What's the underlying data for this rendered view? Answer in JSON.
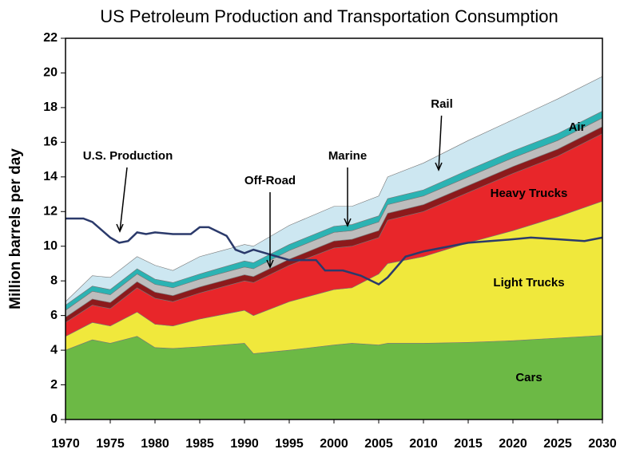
{
  "chart_data": {
    "type": "stacked_area",
    "title": "US Petroleum Production and Transportation Consumption",
    "y_label": "Million barrels per day",
    "xlim": [
      1970,
      2030
    ],
    "ylim": [
      0,
      22
    ],
    "xticks": [
      1970,
      1975,
      1980,
      1985,
      1990,
      1995,
      2000,
      2005,
      2010,
      2015,
      2020,
      2025,
      2030
    ],
    "yticks": [
      0,
      2,
      4,
      6,
      8,
      10,
      12,
      14,
      16,
      18,
      20,
      22
    ],
    "x": [
      1970,
      1973,
      1975,
      1978,
      1980,
      1982,
      1985,
      1990,
      1991,
      1995,
      2000,
      2002,
      2005,
      2006,
      2010,
      2015,
      2020,
      2025,
      2030
    ],
    "series": [
      {
        "name": "Cars",
        "color": "#6cb945",
        "values": [
          4.0,
          4.6,
          4.4,
          4.8,
          4.15,
          4.1,
          4.2,
          4.4,
          3.8,
          4.0,
          4.3,
          4.4,
          4.3,
          4.4,
          4.4,
          4.45,
          4.55,
          4.7,
          4.85
        ]
      },
      {
        "name": "Light Trucks",
        "color": "#f0e83c",
        "values": [
          0.8,
          1.0,
          1.0,
          1.4,
          1.35,
          1.3,
          1.6,
          1.9,
          2.2,
          2.8,
          3.2,
          3.2,
          4.1,
          4.6,
          5.0,
          5.75,
          6.35,
          7.0,
          7.75
        ]
      },
      {
        "name": "Heavy Trucks",
        "color": "#e8262a",
        "values": [
          0.8,
          1.0,
          1.0,
          1.4,
          1.5,
          1.4,
          1.5,
          1.7,
          1.9,
          2.1,
          2.4,
          2.4,
          2.1,
          2.5,
          2.6,
          2.9,
          3.3,
          3.5,
          3.9
        ]
      },
      {
        "name": "Off-Road",
        "color": "#8c1a1c",
        "values": [
          0.3,
          0.35,
          0.35,
          0.35,
          0.35,
          0.35,
          0.35,
          0.35,
          0.35,
          0.35,
          0.4,
          0.4,
          0.4,
          0.4,
          0.4,
          0.4,
          0.4,
          0.4,
          0.4
        ]
      },
      {
        "name": "Marine",
        "color": "#bdbdbd",
        "values": [
          0.4,
          0.45,
          0.45,
          0.45,
          0.45,
          0.45,
          0.45,
          0.45,
          0.45,
          0.5,
          0.5,
          0.5,
          0.5,
          0.5,
          0.5,
          0.5,
          0.5,
          0.5,
          0.5
        ]
      },
      {
        "name": "Rail",
        "color": "#2bb3b3",
        "values": [
          0.3,
          0.3,
          0.3,
          0.3,
          0.3,
          0.3,
          0.3,
          0.35,
          0.35,
          0.35,
          0.35,
          0.35,
          0.35,
          0.35,
          0.35,
          0.4,
          0.4,
          0.4,
          0.4
        ]
      },
      {
        "name": "Air",
        "color": "#cde7f1",
        "values": [
          0.2,
          0.6,
          0.7,
          0.7,
          0.8,
          0.7,
          1.0,
          0.95,
          0.95,
          1.1,
          1.15,
          1.05,
          1.15,
          1.25,
          1.55,
          1.7,
          1.8,
          2.0,
          2.0
        ]
      }
    ],
    "line": {
      "name": "U.S. Production",
      "color": "#2b3a6b",
      "x": [
        1970,
        1972,
        1973,
        1975,
        1976,
        1977,
        1978,
        1979,
        1980,
        1982,
        1984,
        1985,
        1986,
        1988,
        1989,
        1990,
        1991,
        1995,
        1998,
        1999,
        2001,
        2003,
        2005,
        2006,
        2008,
        2010,
        2012,
        2015,
        2020,
        2022,
        2025,
        2028,
        2030
      ],
      "values": [
        11.6,
        11.6,
        11.4,
        10.5,
        10.2,
        10.3,
        10.8,
        10.7,
        10.8,
        10.7,
        10.7,
        11.1,
        11.1,
        10.6,
        9.8,
        9.6,
        9.8,
        9.2,
        9.2,
        8.6,
        8.6,
        8.3,
        7.8,
        8.2,
        9.4,
        9.7,
        9.9,
        10.2,
        10.4,
        10.5,
        10.4,
        10.3,
        10.5
      ]
    }
  }
}
